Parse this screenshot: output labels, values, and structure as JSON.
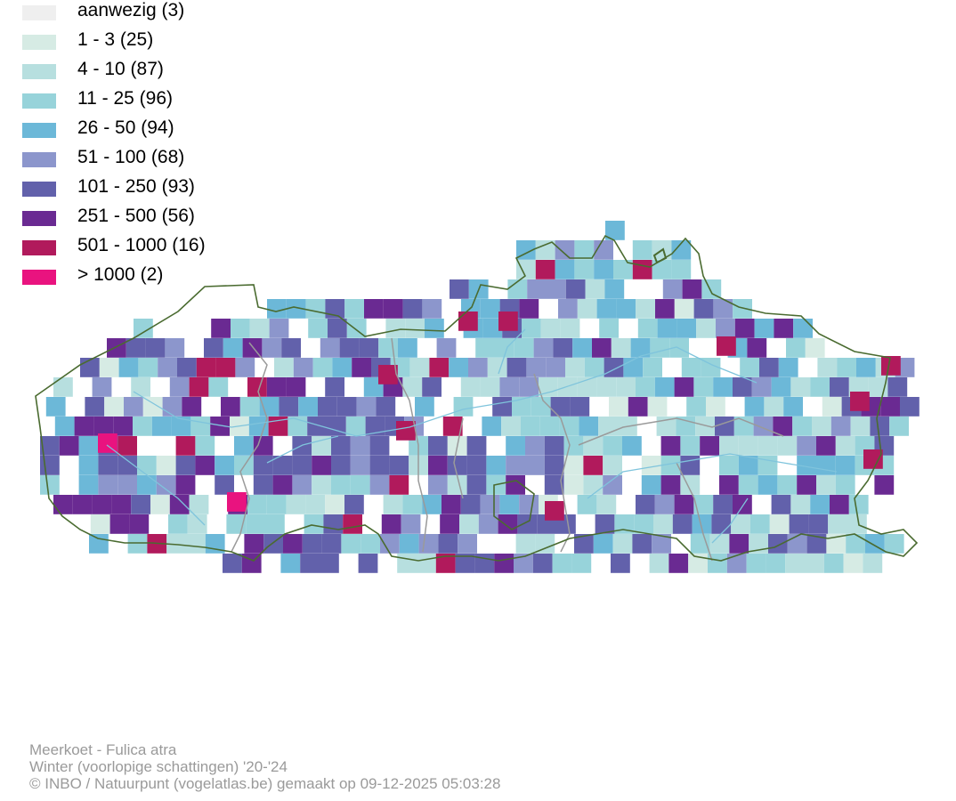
{
  "legend": {
    "items": [
      {
        "label": "aanwezig (3)",
        "color": "#efefef"
      },
      {
        "label": "1 - 3 (25)",
        "color": "#d6ebe4"
      },
      {
        "label": "4 - 10 (87)",
        "color": "#b7dfdf"
      },
      {
        "label": "11 - 25 (96)",
        "color": "#97d3da"
      },
      {
        "label": "26 - 50 (94)",
        "color": "#6cb8d8"
      },
      {
        "label": "51 - 100 (68)",
        "color": "#8c96cc"
      },
      {
        "label": "101 - 250 (93)",
        "color": "#6261ab"
      },
      {
        "label": "251 - 500 (56)",
        "color": "#6a2a92"
      },
      {
        "label": "501 - 1000 (16)",
        "color": "#b11a5c"
      },
      {
        "label": "> 1000 (2)",
        "color": "#e9137f"
      }
    ]
  },
  "map": {
    "region_outline_color": "#4a6b30",
    "river_color": "#7fc4dc",
    "province_border_color": "#999999"
  },
  "caption": {
    "species": "Meerkoet - Fulica atra",
    "period": "Winter (voorlopige schattingen) '20-'24",
    "credit": "© INBO / Natuurpunt (vogelatlas.be) gemaakt op 09-12-2025 05:03:28"
  }
}
